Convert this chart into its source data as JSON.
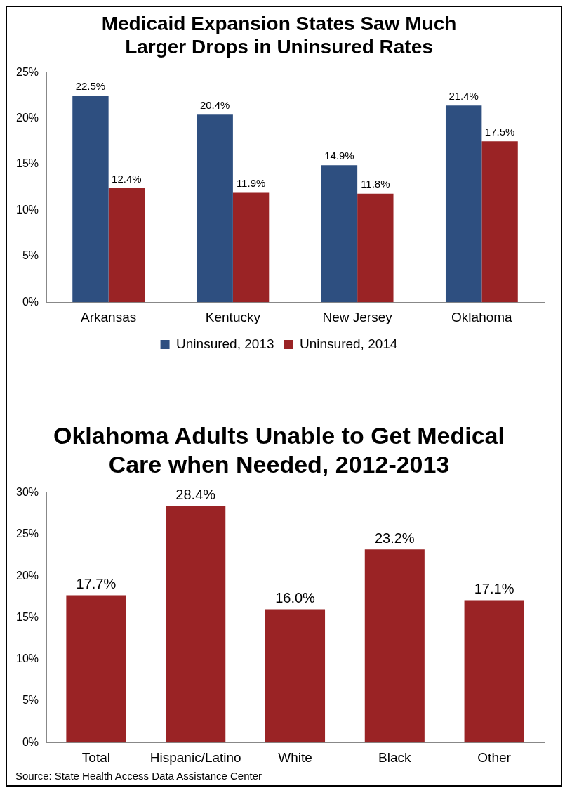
{
  "chart_data": [
    {
      "type": "bar",
      "title": "Medicaid Expansion States Saw Much Larger Drops in Uninsured Rates",
      "categories": [
        "Arkansas",
        "Kentucky",
        "New Jersey",
        "Oklahoma"
      ],
      "series": [
        {
          "name": "Uninsured, 2013",
          "color": "#2e4f80",
          "values": [
            22.5,
            20.4,
            14.9,
            21.4
          ]
        },
        {
          "name": "Uninsured, 2014",
          "color": "#9a2325",
          "values": [
            12.4,
            11.9,
            11.8,
            17.5
          ]
        }
      ],
      "ylim": [
        0,
        25
      ],
      "yticks": [
        {
          "value": 0,
          "label": "0%"
        },
        {
          "value": 5,
          "label": "5%"
        },
        {
          "value": 10,
          "label": "10%"
        },
        {
          "value": 15,
          "label": "15%"
        },
        {
          "value": 20,
          "label": "20%"
        },
        {
          "value": 25,
          "label": "25%"
        }
      ],
      "value_labels": [
        [
          "22.5%",
          "20.4%",
          "14.9%",
          "21.4%"
        ],
        [
          "12.4%",
          "11.9%",
          "11.8%",
          "17.5%"
        ]
      ],
      "legend": "bottom",
      "grid": false
    },
    {
      "type": "bar",
      "title": "Oklahoma Adults Unable to Get Medical Care when Needed, 2012-2013",
      "categories": [
        "Total",
        "Hispanic/Latino",
        "White",
        "Black",
        "Other"
      ],
      "series": [
        {
          "color": "#9a2325",
          "values": [
            17.7,
            28.4,
            16.0,
            23.2,
            17.1
          ]
        }
      ],
      "ylim": [
        0,
        30
      ],
      "yticks": [
        {
          "value": 0,
          "label": "0%"
        },
        {
          "value": 5,
          "label": "5%"
        },
        {
          "value": 10,
          "label": "10%"
        },
        {
          "value": 15,
          "label": "15%"
        },
        {
          "value": 20,
          "label": "20%"
        },
        {
          "value": 25,
          "label": "25%"
        },
        {
          "value": 30,
          "label": "30%"
        }
      ],
      "value_labels": [
        [
          "17.7%",
          "28.4%",
          "16.0%",
          "23.2%",
          "17.1%"
        ]
      ],
      "grid": false,
      "annotations": [
        "Source: State Health Access Data Assistance Center"
      ]
    }
  ]
}
